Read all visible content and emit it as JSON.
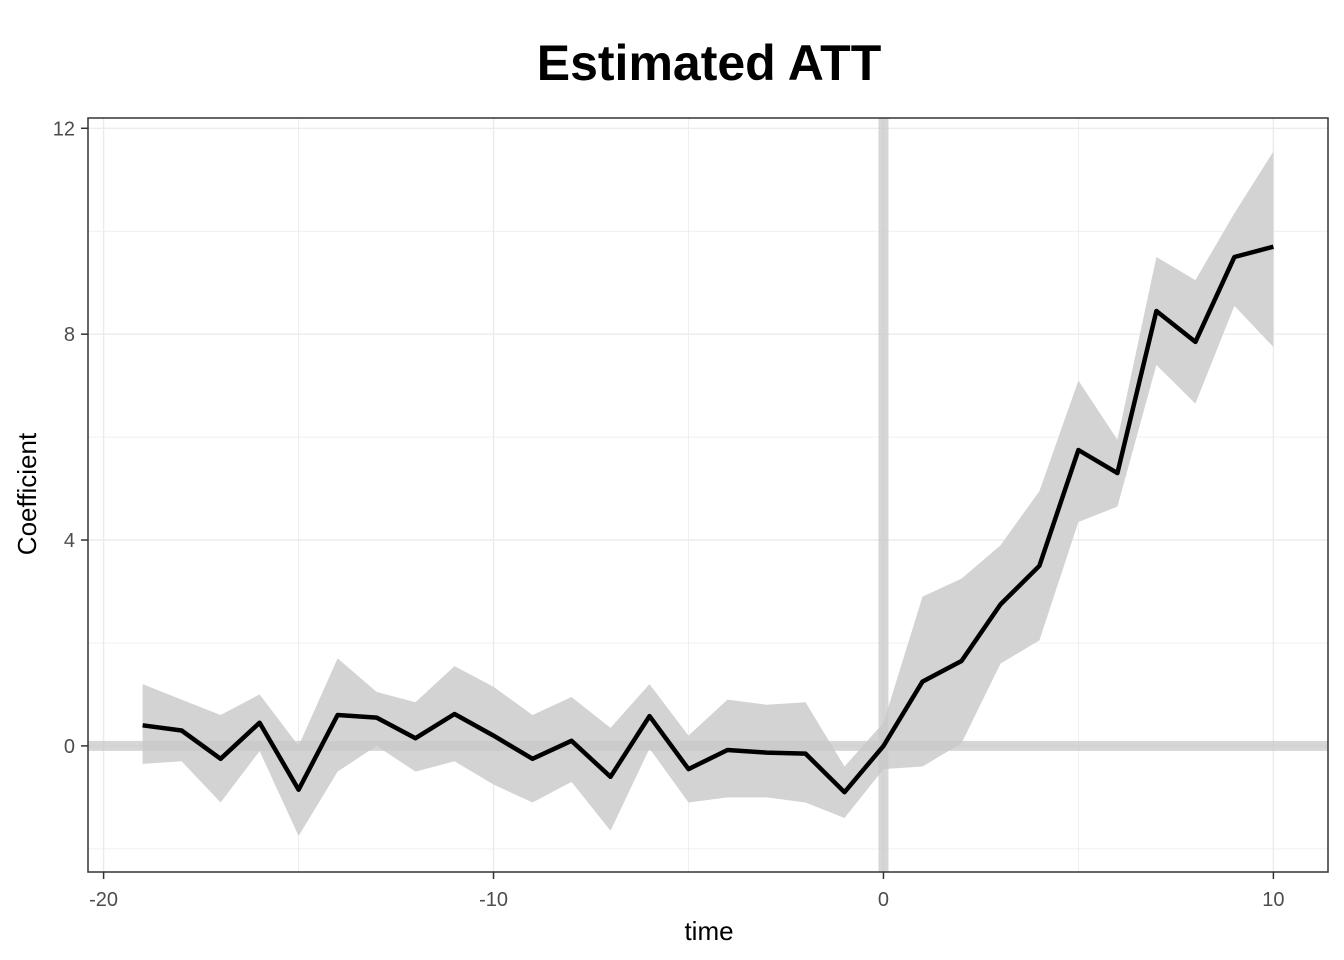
{
  "chart_data": {
    "type": "line",
    "title": "Estimated ATT",
    "xlabel": "time",
    "ylabel": "Coefficient",
    "xlim": [
      -20.4,
      11.4
    ],
    "ylim": [
      -2.45,
      12.2
    ],
    "x_ticks": [
      -20,
      -10,
      0,
      10
    ],
    "x_tick_labels": [
      "-20",
      "-10",
      "0",
      "10"
    ],
    "y_ticks": [
      0,
      4,
      8,
      12
    ],
    "y_tick_labels": [
      "0",
      "4",
      "8",
      "12"
    ],
    "grid": true,
    "reference_lines": {
      "x": 0,
      "y": 0
    },
    "x": [
      -19,
      -18,
      -17,
      -16,
      -15,
      -14,
      -13,
      -12,
      -11,
      -10,
      -9,
      -8,
      -7,
      -6,
      -5,
      -4,
      -3,
      -2,
      -1,
      0,
      1,
      2,
      3,
      4,
      5,
      6,
      7,
      8,
      9,
      10
    ],
    "series": [
      {
        "values": [
          0.4,
          0.3,
          -0.25,
          0.45,
          -0.85,
          0.6,
          0.55,
          0.15,
          0.62,
          0.2,
          -0.25,
          0.1,
          -0.6,
          0.58,
          -0.45,
          -0.08,
          -0.13,
          -0.15,
          -0.9,
          0.0,
          1.25,
          1.65,
          2.75,
          3.5,
          5.75,
          5.3,
          8.45,
          7.85,
          9.5,
          9.7
        ],
        "lower": [
          -0.35,
          -0.3,
          -1.1,
          -0.1,
          -1.75,
          -0.5,
          0.0,
          -0.5,
          -0.3,
          -0.75,
          -1.1,
          -0.7,
          -1.65,
          -0.05,
          -1.1,
          -1.0,
          -1.0,
          -1.1,
          -1.4,
          -0.45,
          -0.4,
          0.05,
          1.6,
          2.05,
          4.35,
          4.65,
          7.4,
          6.65,
          8.55,
          7.75
        ],
        "upper": [
          1.2,
          0.9,
          0.6,
          1.0,
          0.0,
          1.7,
          1.05,
          0.85,
          1.55,
          1.15,
          0.6,
          0.95,
          0.35,
          1.2,
          0.2,
          0.9,
          0.8,
          0.85,
          -0.4,
          0.45,
          2.9,
          3.25,
          3.9,
          4.95,
          7.1,
          5.95,
          9.5,
          9.05,
          10.35,
          11.55
        ]
      }
    ],
    "colors": {
      "line": "#000000",
      "ribbon": "#d3d3d3",
      "reference": "#c8c8c8",
      "grid": "#ebebeb",
      "panel_border": "#333333"
    }
  }
}
